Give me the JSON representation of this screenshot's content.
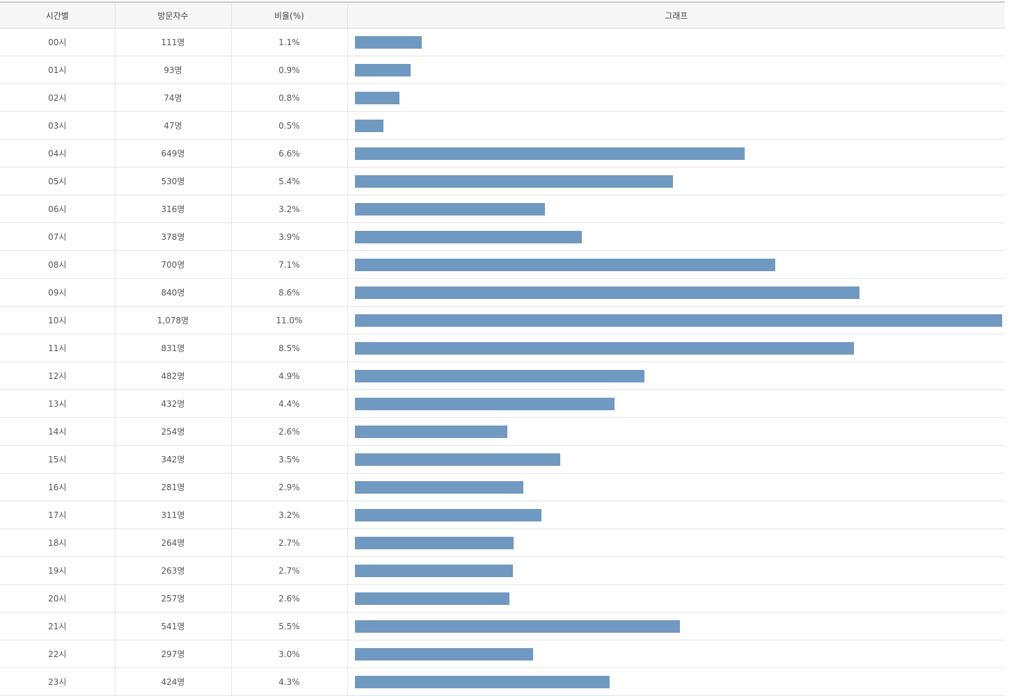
{
  "table": {
    "headers": {
      "time": "시간별",
      "visitors": "방문자수",
      "ratio": "비율(%)",
      "graph": "그래프"
    },
    "colors": {
      "bar": "#7099c1"
    }
  },
  "chart_data": {
    "type": "bar",
    "orientation": "horizontal",
    "categories": [
      "00시",
      "01시",
      "02시",
      "03시",
      "04시",
      "05시",
      "06시",
      "07시",
      "08시",
      "09시",
      "10시",
      "11시",
      "12시",
      "13시",
      "14시",
      "15시",
      "16시",
      "17시",
      "18시",
      "19시",
      "20시",
      "21시",
      "22시",
      "23시"
    ],
    "series": [
      {
        "values": [
          111,
          93,
          74,
          47,
          649,
          530,
          316,
          378,
          700,
          840,
          1078,
          831,
          482,
          432,
          254,
          342,
          281,
          311,
          264,
          263,
          257,
          541,
          297,
          424
        ]
      }
    ],
    "visitor_labels": [
      "111명",
      "93명",
      "74명",
      "47명",
      "649명",
      "530명",
      "316명",
      "378명",
      "700명",
      "840명",
      "1,078명",
      "831명",
      "482명",
      "432명",
      "254명",
      "342명",
      "281명",
      "311명",
      "264명",
      "263명",
      "257명",
      "541명",
      "297명",
      "424명"
    ],
    "ratio_labels": [
      "1.1%",
      "0.9%",
      "0.8%",
      "0.5%",
      "6.6%",
      "5.4%",
      "3.2%",
      "3.9%",
      "7.1%",
      "8.6%",
      "11.0%",
      "8.5%",
      "4.9%",
      "4.4%",
      "2.6%",
      "3.5%",
      "2.9%",
      "3.2%",
      "2.7%",
      "2.7%",
      "2.6%",
      "5.5%",
      "3.0%",
      "4.3%"
    ],
    "xlim": [
      0,
      1078
    ],
    "grid": false
  }
}
